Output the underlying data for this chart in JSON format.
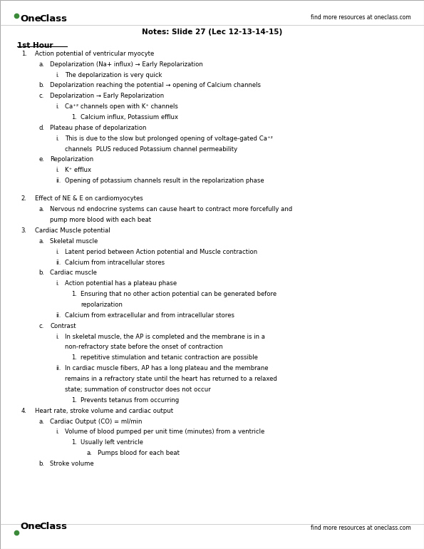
{
  "bg_color": "#ffffff",
  "title_text": "Notes: Slide 27 (Lec 12-13-14-15)",
  "header_label": "1st Hour",
  "top_right_text": "find more resources at oneclass.com",
  "bottom_right_text": "find more resources at oneclass.com",
  "lines": [
    {
      "indent": 0,
      "style": "num",
      "num": "1.",
      "text": "Action potential of ventricular myocyte"
    },
    {
      "indent": 1,
      "style": "alpha",
      "num": "a.",
      "text": "Depolarization (Na+ influx) → Early Repolarization"
    },
    {
      "indent": 2,
      "style": "roman",
      "num": "i.",
      "text": "The depolarization is very quick"
    },
    {
      "indent": 1,
      "style": "alpha",
      "num": "b.",
      "text": "Depolarization reaching the potential → opening of Calcium channels"
    },
    {
      "indent": 1,
      "style": "alpha",
      "num": "c.",
      "text": "Depolarization → Early Repolarization"
    },
    {
      "indent": 2,
      "style": "roman",
      "num": "i.",
      "text": "Ca⁺² channels open with K⁺ channels"
    },
    {
      "indent": 3,
      "style": "num1",
      "num": "1.",
      "text": "Calcium influx, Potassium efflux"
    },
    {
      "indent": 1,
      "style": "alpha",
      "num": "d.",
      "text": "Plateau phase of depolarization"
    },
    {
      "indent": 2,
      "style": "roman",
      "num": "i.",
      "text": "This is due to the slow but prolonged opening of voltage-gated Ca⁺²"
    },
    {
      "indent": 2,
      "style": "cont",
      "num": "",
      "text": "channels  PLUS reduced Potassium channel permeability"
    },
    {
      "indent": 1,
      "style": "alpha",
      "num": "e.",
      "text": "Repolarization"
    },
    {
      "indent": 2,
      "style": "roman",
      "num": "i.",
      "text": "K⁺ efflux"
    },
    {
      "indent": 2,
      "style": "roman",
      "num": "ii.",
      "text": "Opening of potassium channels result in the repolarization phase"
    },
    {
      "indent": -1,
      "style": "blank",
      "num": "",
      "text": ""
    },
    {
      "indent": 0,
      "style": "num",
      "num": "2.",
      "text": "Effect of NE & E on cardiomyocytes"
    },
    {
      "indent": 1,
      "style": "alpha",
      "num": "a.",
      "text": "Nervous nd endocrine systems can cause heart to contract more forcefully and"
    },
    {
      "indent": 1,
      "style": "cont",
      "num": "",
      "text": "pump more blood with each beat"
    },
    {
      "indent": 0,
      "style": "num",
      "num": "3.",
      "text": "Cardiac Muscle potential"
    },
    {
      "indent": 1,
      "style": "alpha",
      "num": "a.",
      "text": "Skeletal muscle"
    },
    {
      "indent": 2,
      "style": "roman",
      "num": "i.",
      "text": "Latent period between Action potential and Muscle contraction"
    },
    {
      "indent": 2,
      "style": "roman",
      "num": "ii.",
      "text": "Calcium from intracellular stores"
    },
    {
      "indent": 1,
      "style": "alpha",
      "num": "b.",
      "text": "Cardiac muscle"
    },
    {
      "indent": 2,
      "style": "roman",
      "num": "i.",
      "text": "Action potential has a plateau phase"
    },
    {
      "indent": 3,
      "style": "num1",
      "num": "1.",
      "text": "Ensuring that no other action potential can be generated before"
    },
    {
      "indent": 3,
      "style": "cont",
      "num": "",
      "text": "repolarization"
    },
    {
      "indent": 2,
      "style": "roman",
      "num": "ii.",
      "text": "Calcium from extracellular and from intracellular stores"
    },
    {
      "indent": 1,
      "style": "alpha",
      "num": "c.",
      "text": "Contrast"
    },
    {
      "indent": 2,
      "style": "roman",
      "num": "i.",
      "text": "In skeletal muscle, the AP is completed and the membrane is in a"
    },
    {
      "indent": 2,
      "style": "cont",
      "num": "",
      "text": "non-refractory state before the onset of contraction"
    },
    {
      "indent": 3,
      "style": "num1",
      "num": "1.",
      "text": "repetitive stimulation and tetanic contraction are possible"
    },
    {
      "indent": 2,
      "style": "roman",
      "num": "ii.",
      "text": "In cardiac muscle fibers, AP has a long plateau and the membrane"
    },
    {
      "indent": 2,
      "style": "cont",
      "num": "",
      "text": "remains in a refractory state until the heart has returned to a relaxed"
    },
    {
      "indent": 2,
      "style": "cont",
      "num": "",
      "text": "state; summation of constructor does not occur"
    },
    {
      "indent": 3,
      "style": "num1",
      "num": "1.",
      "text": "Prevents tetanus from occurring"
    },
    {
      "indent": 0,
      "style": "num",
      "num": "4.",
      "text": "Heart rate, stroke volume and cardiac output"
    },
    {
      "indent": 1,
      "style": "alpha",
      "num": "a.",
      "text": "Cardiac Output (CO) = ml/min"
    },
    {
      "indent": 2,
      "style": "roman",
      "num": "i.",
      "text": "Volume of blood pumped per unit time (minutes) from a ventricle"
    },
    {
      "indent": 3,
      "style": "num1",
      "num": "1.",
      "text": "Usually left ventricle"
    },
    {
      "indent": 4,
      "style": "alpha2",
      "num": "a.",
      "text": "Pumps blood for each beat"
    },
    {
      "indent": 1,
      "style": "alpha",
      "num": "b.",
      "text": "Stroke volume"
    }
  ]
}
